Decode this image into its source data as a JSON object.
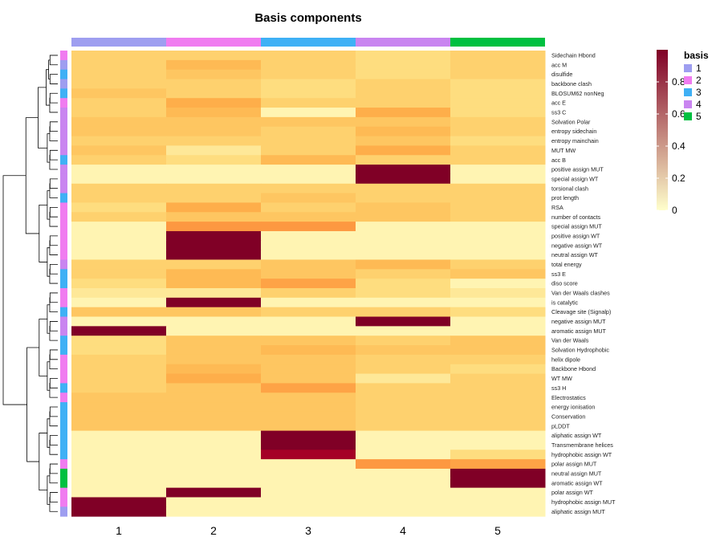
{
  "chart_data": {
    "type": "heatmap",
    "title": "Basis components",
    "columns": [
      "1",
      "2",
      "3",
      "4",
      "5"
    ],
    "rows": [
      "Sidechain Hbond",
      "acc M",
      "disulfide",
      "backbone clash",
      "BLOSUM62 nonNeg",
      "acc E",
      "ss3 C",
      "Solvation Polar",
      "entropy sidechain",
      "entropy mainchain",
      "MUT MW",
      "acc B",
      "positive assign MUT",
      "special assign WT",
      "torsional clash",
      "prot length",
      "RSA",
      "number of contacts",
      "special assign MUT",
      "positive assign WT",
      "negative assign WT",
      "neutral assign WT",
      "total energy",
      "ss3 E",
      "diso score",
      "Van der Waals clashes",
      "is catalytic",
      "Cleavage site (Signalp)",
      "negative assign MUT",
      "aromatic assign MUT",
      "Van der Waals",
      "Solvation Hydrophobic",
      "helix dipole",
      "Backbone Hbond",
      "WT MW",
      "ss3 H",
      "Electrostatics",
      "energy ionisation",
      "Conservation",
      "pLDDT",
      "aliphatic assign WT",
      "Transmembrane helices",
      "hydrophobic assign WT",
      "polar assign MUT",
      "neutral assign MUT",
      "aromatic assign WT",
      "polar assign WT",
      "hydrophobic assign MUT",
      "aliphatic assign MUT"
    ],
    "row_basis": [
      2,
      1,
      3,
      1,
      3,
      2,
      4,
      4,
      4,
      4,
      4,
      3,
      4,
      4,
      4,
      3,
      2,
      2,
      2,
      2,
      2,
      2,
      4,
      3,
      3,
      2,
      2,
      3,
      4,
      4,
      3,
      3,
      2,
      2,
      2,
      3,
      2,
      3,
      3,
      3,
      3,
      3,
      3,
      2,
      5,
      5,
      2,
      2,
      1
    ],
    "values": [
      [
        0.2,
        0.2,
        0.2,
        0.15,
        0.2
      ],
      [
        0.2,
        0.3,
        0.2,
        0.15,
        0.2
      ],
      [
        0.2,
        0.25,
        0.2,
        0.15,
        0.2
      ],
      [
        0.2,
        0.2,
        0.15,
        0.2,
        0.15
      ],
      [
        0.25,
        0.2,
        0.15,
        0.2,
        0.15
      ],
      [
        0.2,
        0.35,
        0.2,
        0.2,
        0.15
      ],
      [
        0.2,
        0.3,
        0.05,
        0.35,
        0.15
      ],
      [
        0.25,
        0.25,
        0.25,
        0.25,
        0.2
      ],
      [
        0.25,
        0.25,
        0.2,
        0.3,
        0.2
      ],
      [
        0.2,
        0.2,
        0.2,
        0.25,
        0.15
      ],
      [
        0.25,
        0.1,
        0.2,
        0.35,
        0.2
      ],
      [
        0.2,
        0.15,
        0.3,
        0.2,
        0.2
      ],
      [
        0.05,
        0.05,
        0.05,
        1.0,
        0.05
      ],
      [
        0.05,
        0.05,
        0.05,
        1.0,
        0.05
      ],
      [
        0.2,
        0.2,
        0.2,
        0.2,
        0.2
      ],
      [
        0.2,
        0.2,
        0.25,
        0.2,
        0.2
      ],
      [
        0.15,
        0.35,
        0.2,
        0.25,
        0.2
      ],
      [
        0.2,
        0.25,
        0.25,
        0.25,
        0.2
      ],
      [
        0.05,
        0.45,
        0.45,
        0.05,
        0.05
      ],
      [
        0.05,
        1.0,
        0.05,
        0.05,
        0.05
      ],
      [
        0.05,
        1.0,
        0.05,
        0.05,
        0.05
      ],
      [
        0.05,
        1.0,
        0.05,
        0.05,
        0.05
      ],
      [
        0.2,
        0.2,
        0.25,
        0.3,
        0.2
      ],
      [
        0.2,
        0.3,
        0.25,
        0.2,
        0.25
      ],
      [
        0.15,
        0.3,
        0.4,
        0.15,
        0.05
      ],
      [
        0.1,
        0.1,
        0.2,
        0.15,
        0.1
      ],
      [
        0.05,
        1.0,
        0.05,
        0.05,
        0.05
      ],
      [
        0.25,
        0.25,
        0.2,
        0.2,
        0.15
      ],
      [
        0.05,
        0.05,
        0.05,
        1.0,
        0.05
      ],
      [
        1.0,
        0.05,
        0.05,
        0.05,
        0.05
      ],
      [
        0.15,
        0.25,
        0.25,
        0.2,
        0.25
      ],
      [
        0.15,
        0.25,
        0.3,
        0.25,
        0.25
      ],
      [
        0.2,
        0.25,
        0.25,
        0.2,
        0.2
      ],
      [
        0.2,
        0.3,
        0.25,
        0.2,
        0.15
      ],
      [
        0.2,
        0.35,
        0.25,
        0.1,
        0.2
      ],
      [
        0.2,
        0.25,
        0.4,
        0.2,
        0.2
      ],
      [
        0.25,
        0.25,
        0.25,
        0.2,
        0.2
      ],
      [
        0.25,
        0.25,
        0.25,
        0.2,
        0.2
      ],
      [
        0.25,
        0.25,
        0.25,
        0.2,
        0.2
      ],
      [
        0.25,
        0.25,
        0.25,
        0.2,
        0.2
      ],
      [
        0.05,
        0.05,
        1.0,
        0.05,
        0.05
      ],
      [
        0.05,
        0.05,
        1.0,
        0.05,
        0.05
      ],
      [
        0.05,
        0.05,
        0.9,
        0.05,
        0.15
      ],
      [
        0.05,
        0.05,
        0.05,
        0.45,
        0.4
      ],
      [
        0.05,
        0.05,
        0.05,
        0.05,
        1.0
      ],
      [
        0.05,
        0.05,
        0.05,
        0.05,
        1.0
      ],
      [
        0.05,
        1.0,
        0.05,
        0.05,
        0.05
      ],
      [
        1.0,
        0.05,
        0.05,
        0.05,
        0.05
      ],
      [
        1.0,
        0.05,
        0.05,
        0.05,
        0.05
      ]
    ],
    "color_scale": {
      "range": [
        0,
        1
      ],
      "ticks": [
        0,
        0.2,
        0.4,
        0.6,
        0.8
      ],
      "colors": [
        "#ffffcc",
        "#fed976",
        "#feb24c",
        "#fd8d3c",
        "#f03b20",
        "#bd0026",
        "#800026"
      ]
    },
    "annotation": {
      "name": "basis",
      "levels": [
        "1",
        "2",
        "3",
        "4",
        "5"
      ],
      "colors": {
        "1": "#9e9ef0",
        "2": "#f07cf0",
        "3": "#3fb0f5",
        "4": "#c985f0",
        "5": "#00c040"
      }
    },
    "legend_position": "right"
  }
}
